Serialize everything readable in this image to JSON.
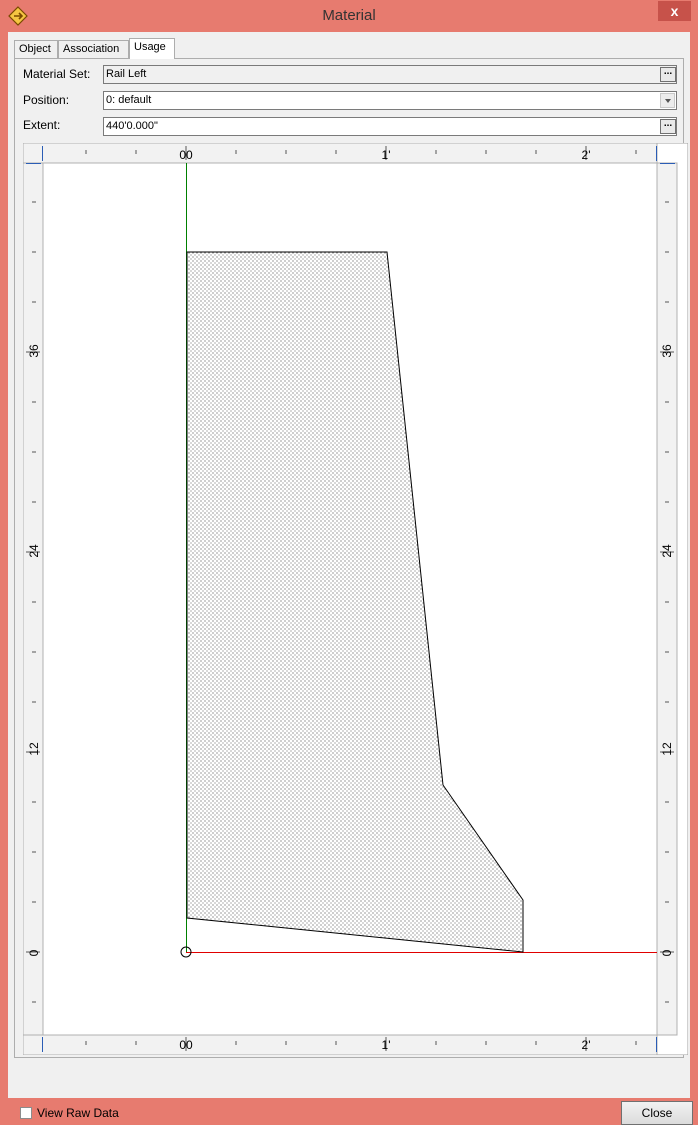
{
  "window": {
    "title": "Material",
    "close_glyph": "x",
    "icon": "app-diamond-icon"
  },
  "tabs": [
    {
      "label": "Object",
      "active": false
    },
    {
      "label": "Association",
      "active": false
    },
    {
      "label": "Usage",
      "active": true
    }
  ],
  "form": {
    "material_set": {
      "label": "Material Set:",
      "value": "Rail Left",
      "button": "..."
    },
    "position": {
      "label": "Position:",
      "value": "0: default"
    },
    "extent": {
      "label": "Extent:",
      "value": "440'0.000\"",
      "button": "..."
    }
  },
  "rulers": {
    "top_labels": [
      "00",
      "1'",
      "2'"
    ],
    "bottom_labels": [
      "00",
      "1'",
      "2'"
    ],
    "left_labels": [
      "36",
      "24",
      "12",
      "0"
    ],
    "right_labels": [
      "36",
      "24",
      "12",
      "0"
    ]
  },
  "colors": {
    "y_axis": "#008000",
    "x_axis": "#e00000",
    "title_bar": "#e77b6f"
  },
  "footer": {
    "view_raw_label": "View Raw Data",
    "view_raw_checked": false,
    "close_label": "Close"
  }
}
